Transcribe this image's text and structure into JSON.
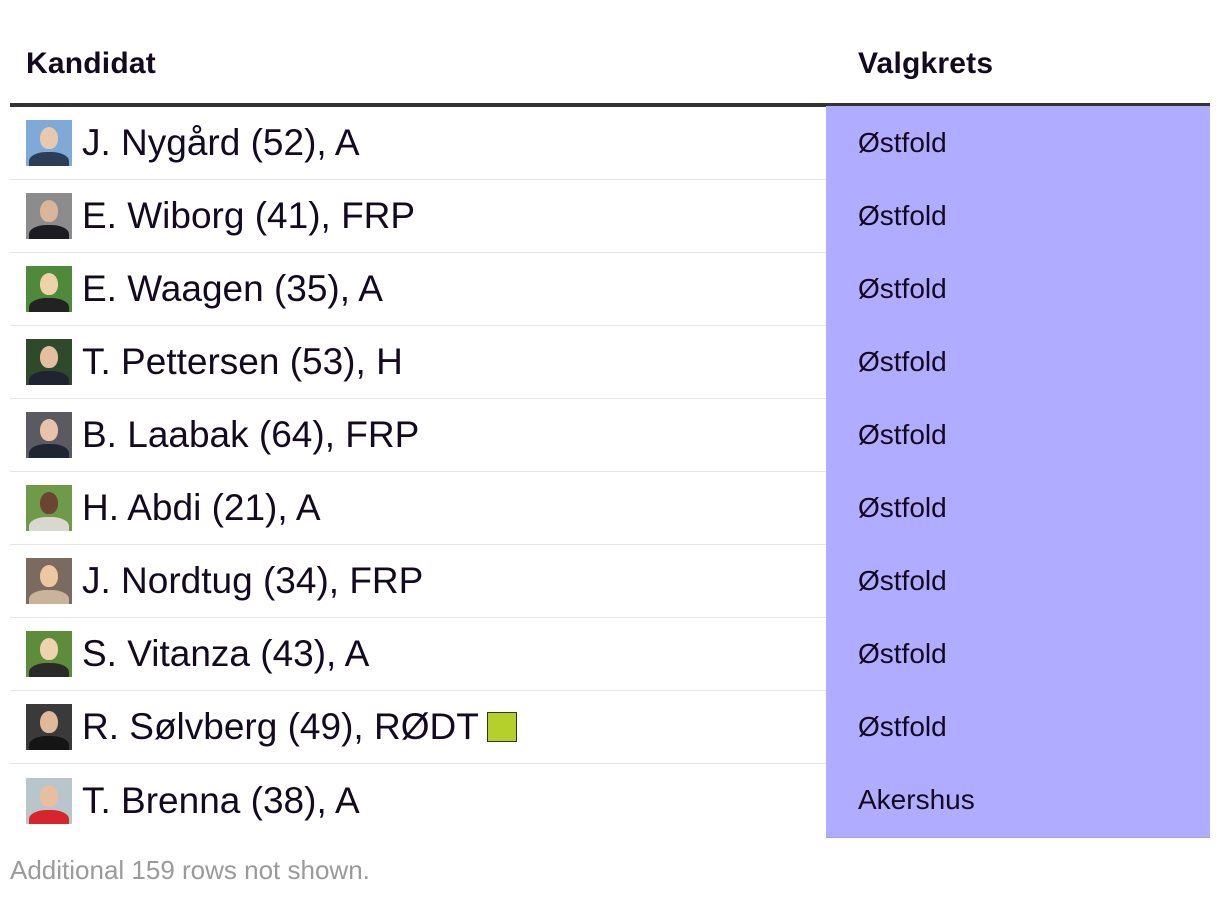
{
  "table": {
    "headers": {
      "kandidat": "Kandidat",
      "valgkrets": "Valgkrets"
    },
    "rows": [
      {
        "name": "J. Nygård (52), A",
        "valgkrets": "Østfold",
        "avatar": {
          "bg": "#7fa9d6",
          "head": "#e8c9b0",
          "body": "#2c3e55"
        }
      },
      {
        "name": "E. Wiborg (41), FRP",
        "valgkrets": "Østfold",
        "avatar": {
          "bg": "#8c8c8c",
          "head": "#d9b59a",
          "body": "#1c1c22"
        }
      },
      {
        "name": "E. Waagen (35), A",
        "valgkrets": "Østfold",
        "avatar": {
          "bg": "#4f8a3c",
          "head": "#f0d2a8",
          "body": "#222222"
        }
      },
      {
        "name": "T. Pettersen (53), H",
        "valgkrets": "Østfold",
        "avatar": {
          "bg": "#2f4a2a",
          "head": "#e3bfa0",
          "body": "#1e2430"
        }
      },
      {
        "name": "B. Laabak (64), FRP",
        "valgkrets": "Østfold",
        "avatar": {
          "bg": "#5a5a60",
          "head": "#e6c3aa",
          "body": "#1f2533"
        }
      },
      {
        "name": "H. Abdi (21), A",
        "valgkrets": "Østfold",
        "avatar": {
          "bg": "#6e9a4a",
          "head": "#6b4530",
          "body": "#d8d8d0"
        }
      },
      {
        "name": "J. Nordtug (34), FRP",
        "valgkrets": "Østfold",
        "avatar": {
          "bg": "#7a6a60",
          "head": "#ecc7a2",
          "body": "#c9b49a"
        }
      },
      {
        "name": "S. Vitanza (43), A",
        "valgkrets": "Østfold",
        "avatar": {
          "bg": "#5d8c3a",
          "head": "#eed3b0",
          "body": "#2a2a2a"
        }
      },
      {
        "name": "R. Sølvberg (49), RØDT",
        "valgkrets": "Østfold",
        "party_badge_color": "#b5cf2b",
        "avatar": {
          "bg": "#3a3a3a",
          "head": "#e0b89a",
          "body": "#151515"
        }
      },
      {
        "name": "T. Brenna (38), A",
        "valgkrets": "Akershus",
        "avatar": {
          "bg": "#b8c6cc",
          "head": "#e8bea0",
          "body": "#d8242c"
        }
      }
    ]
  },
  "footer": {
    "note": "Additional 159 rows not shown."
  },
  "colors": {
    "valgkrets_bg": "#b0acff",
    "header_rule": "#333333",
    "text": "#140a20",
    "muted": "#9a9a9a"
  }
}
